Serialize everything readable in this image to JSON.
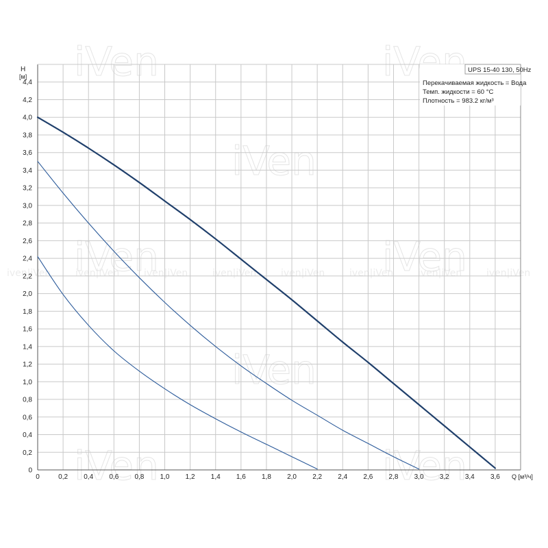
{
  "chart_data": {
    "type": "line",
    "title": "UPS 15-40 130, 50Hz",
    "ylabel_letter": "H",
    "ylabel_unit": "[м]",
    "xlabel": "Q [м³/ч]",
    "xlim": [
      0,
      3.8
    ],
    "ylim": [
      0,
      4.6
    ],
    "x_ticks": [
      "0",
      "0,2",
      "0,4",
      "0,6",
      "0,8",
      "1,0",
      "1,2",
      "1,4",
      "1,6",
      "1,8",
      "2,0",
      "2,2",
      "2,4",
      "2,6",
      "2,8",
      "3,0",
      "3,2",
      "3,4",
      "3,6"
    ],
    "y_ticks": [
      "0",
      "0,2",
      "0,4",
      "0,6",
      "0,8",
      "1,0",
      "1,2",
      "1,4",
      "1,6",
      "1,8",
      "2,0",
      "2,2",
      "2,4",
      "2,6",
      "2,8",
      "3,0",
      "3,2",
      "3,4",
      "3,6",
      "3,8",
      "4,0",
      "4,2",
      "4,4"
    ],
    "grid": true,
    "annotations": [
      "Перекачиваемая жидкость = Вода",
      "Темп. жидкости = 60 °C",
      "Плотность = 983.2 кг/м³"
    ],
    "series": [
      {
        "x": [
          0,
          0.2,
          0.4,
          0.6,
          0.8,
          1.0,
          1.2,
          1.4,
          1.6,
          1.8,
          2.0,
          2.2,
          2.4,
          2.6,
          2.8,
          3.0,
          3.2,
          3.4,
          3.6
        ],
        "y": [
          4.0,
          3.83,
          3.65,
          3.46,
          3.26,
          3.05,
          2.84,
          2.62,
          2.39,
          2.16,
          1.93,
          1.69,
          1.45,
          1.22,
          0.98,
          0.74,
          0.5,
          0.26,
          0.02
        ]
      },
      {
        "x": [
          0,
          0.2,
          0.4,
          0.6,
          0.8,
          1.0,
          1.2,
          1.4,
          1.6,
          1.8,
          2.0,
          2.2,
          2.4,
          2.6,
          2.8,
          3.0
        ],
        "y": [
          3.5,
          3.14,
          2.8,
          2.48,
          2.18,
          1.9,
          1.64,
          1.4,
          1.18,
          0.98,
          0.79,
          0.62,
          0.45,
          0.3,
          0.15,
          0.01
        ]
      },
      {
        "x": [
          0,
          0.2,
          0.4,
          0.6,
          0.8,
          1.0,
          1.2,
          1.4,
          1.6,
          1.8,
          2.0,
          2.2
        ],
        "y": [
          2.42,
          1.99,
          1.64,
          1.35,
          1.12,
          0.92,
          0.74,
          0.58,
          0.43,
          0.29,
          0.15,
          0.01
        ]
      }
    ],
    "line_colors": [
      "#1f3f6b",
      "#2b5a9a",
      "#2b5a9a"
    ],
    "watermark": "iVen"
  }
}
